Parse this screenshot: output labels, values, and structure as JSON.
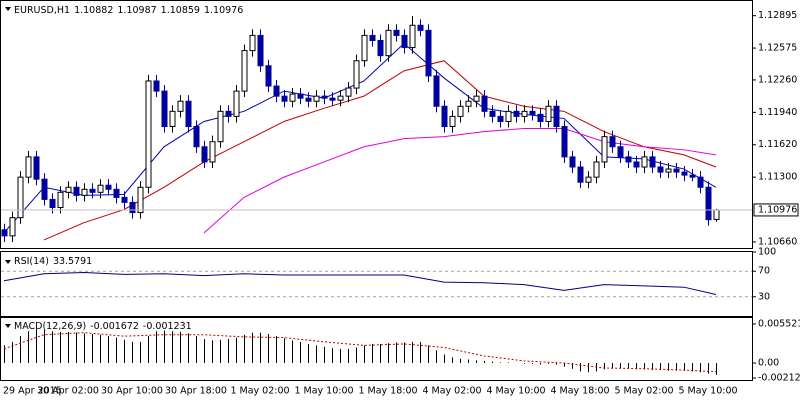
{
  "chart_data": [
    {
      "type": "candlestick",
      "title": "EURUSD,H1",
      "categories": [
        "29 Apr 2015",
        null,
        null,
        null,
        null,
        null,
        null,
        null,
        "30 Apr 02:00",
        null,
        null,
        null,
        null,
        null,
        null,
        null,
        "30 Apr 10:00",
        null,
        null,
        null,
        null,
        null,
        null,
        null,
        "30 Apr 18:00",
        null,
        null,
        null,
        null,
        null,
        null,
        null,
        "1 May 02:00",
        null,
        null,
        null,
        null,
        null,
        null,
        null,
        "1 May 10:00",
        null,
        null,
        null,
        null,
        null,
        null,
        null,
        "1 May 18:00",
        null,
        null,
        null,
        null,
        null,
        null,
        null,
        "4 May 02:00",
        null,
        null,
        null,
        null,
        null,
        null,
        null,
        "4 May 10:00",
        null,
        null,
        null,
        null,
        null,
        null,
        null,
        "4 May 18:00",
        null,
        null,
        null,
        null,
        null,
        null,
        null,
        "5 May 02:00",
        null,
        null,
        null,
        null,
        null,
        null,
        null,
        "5 May 10:00",
        null
      ],
      "open": [
        1.1078,
        1.1072,
        1.109,
        1.113,
        1.115,
        1.1128,
        1.1108,
        1.11,
        1.1115,
        1.112,
        1.1112,
        1.1118,
        1.1115,
        1.1122,
        1.1118,
        1.111,
        1.1105,
        1.1095,
        1.112,
        1.1225,
        1.1215,
        1.118,
        1.1195,
        1.1205,
        1.118,
        1.116,
        1.1145,
        1.1165,
        1.1195,
        1.119,
        1.1215,
        1.1255,
        1.127,
        1.124,
        1.122,
        1.121,
        1.1205,
        1.1212,
        1.1208,
        1.1205,
        1.121,
        1.1208,
        1.1206,
        1.121,
        1.1218,
        1.1245,
        1.127,
        1.1265,
        1.125,
        1.1275,
        1.127,
        1.1258,
        1.128,
        1.1275,
        1.123,
        1.12,
        1.118,
        1.119,
        1.12,
        1.1205,
        1.121,
        1.1195,
        1.119,
        1.1185,
        1.1195,
        1.119,
        1.1195,
        1.1192,
        1.1185,
        1.12,
        1.118,
        1.115,
        1.114,
        1.1125,
        1.113,
        1.1145,
        1.117,
        1.116,
        1.115,
        1.1145,
        1.114,
        1.115,
        1.114,
        1.1135,
        1.1138,
        1.1135,
        1.1132,
        1.113,
        1.112,
        1.10882
      ],
      "high": [
        1.1084,
        1.1096,
        1.1136,
        1.1156,
        1.1156,
        1.1134,
        1.1114,
        1.1121,
        1.1126,
        1.1126,
        1.1124,
        1.1124,
        1.1128,
        1.1128,
        1.1124,
        1.1116,
        1.1111,
        1.1126,
        1.1231,
        1.1231,
        1.1221,
        1.1201,
        1.1211,
        1.1211,
        1.1186,
        1.1166,
        1.1171,
        1.1201,
        1.1201,
        1.1221,
        1.1261,
        1.1276,
        1.1276,
        1.1246,
        1.1226,
        1.1216,
        1.1218,
        1.1218,
        1.1214,
        1.1216,
        1.1216,
        1.1214,
        1.1216,
        1.1224,
        1.1251,
        1.1276,
        1.1276,
        1.1271,
        1.1281,
        1.1281,
        1.1276,
        1.1289,
        1.1286,
        1.1281,
        1.1236,
        1.1206,
        1.1196,
        1.1206,
        1.1211,
        1.1216,
        1.1216,
        1.1201,
        1.1196,
        1.1201,
        1.1201,
        1.1201,
        1.1201,
        1.1198,
        1.1206,
        1.1206,
        1.1186,
        1.1156,
        1.1146,
        1.1136,
        1.1151,
        1.1176,
        1.1176,
        1.1166,
        1.1156,
        1.1151,
        1.1156,
        1.1156,
        1.1146,
        1.1144,
        1.1144,
        1.1141,
        1.1138,
        1.1136,
        1.1126,
        1.10987
      ],
      "low": [
        1.1066,
        1.1066,
        1.1084,
        1.1124,
        1.1122,
        1.1102,
        1.1094,
        1.1094,
        1.1109,
        1.1106,
        1.1106,
        1.1109,
        1.1109,
        1.1112,
        1.1104,
        1.1099,
        1.1089,
        1.1089,
        1.1114,
        1.1209,
        1.1174,
        1.1174,
        1.1189,
        1.1174,
        1.1154,
        1.1139,
        1.1139,
        1.1159,
        1.1184,
        1.1184,
        1.1209,
        1.1249,
        1.1234,
        1.1214,
        1.1204,
        1.1199,
        1.1199,
        1.1202,
        1.1199,
        1.1199,
        1.1202,
        1.12,
        1.12,
        1.1204,
        1.1212,
        1.1239,
        1.1259,
        1.1244,
        1.1244,
        1.1264,
        1.1252,
        1.1252,
        1.1269,
        1.1224,
        1.1194,
        1.1174,
        1.1174,
        1.1184,
        1.1194,
        1.1199,
        1.1189,
        1.1184,
        1.1179,
        1.1179,
        1.1184,
        1.1184,
        1.1186,
        1.1179,
        1.1179,
        1.1174,
        1.1144,
        1.1134,
        1.1119,
        1.1119,
        1.1124,
        1.1139,
        1.1154,
        1.1144,
        1.1139,
        1.1134,
        1.1134,
        1.1134,
        1.1129,
        1.1129,
        1.1129,
        1.1126,
        1.1126,
        1.1114,
        1.1082,
        1.10859
      ],
      "close": [
        1.1072,
        1.109,
        1.113,
        1.115,
        1.1128,
        1.1108,
        1.11,
        1.1115,
        1.112,
        1.1112,
        1.1118,
        1.1115,
        1.1122,
        1.1118,
        1.111,
        1.1105,
        1.1095,
        1.112,
        1.1225,
        1.1215,
        1.118,
        1.1195,
        1.1205,
        1.118,
        1.116,
        1.1145,
        1.1165,
        1.1195,
        1.119,
        1.1215,
        1.1255,
        1.127,
        1.124,
        1.122,
        1.121,
        1.1205,
        1.1212,
        1.1208,
        1.1205,
        1.121,
        1.1208,
        1.1206,
        1.121,
        1.1218,
        1.1245,
        1.127,
        1.1265,
        1.125,
        1.1275,
        1.127,
        1.1258,
        1.128,
        1.1275,
        1.123,
        1.12,
        1.118,
        1.119,
        1.12,
        1.1205,
        1.121,
        1.1195,
        1.119,
        1.1185,
        1.1195,
        1.119,
        1.1195,
        1.1192,
        1.1185,
        1.12,
        1.118,
        1.115,
        1.114,
        1.1125,
        1.113,
        1.1145,
        1.117,
        1.116,
        1.115,
        1.1145,
        1.114,
        1.115,
        1.114,
        1.1135,
        1.1138,
        1.1135,
        1.1132,
        1.113,
        1.112,
        1.1088,
        1.10976
      ],
      "colors": {
        "up": "#ffffff",
        "down": "#0000a0",
        "outline": "#000000"
      },
      "series": [
        {
          "color": "#0000c0",
          "x": [
            0,
            5,
            10,
            15,
            20,
            25,
            30,
            35,
            40,
            45,
            50,
            55,
            60,
            65,
            70,
            75,
            80,
            85,
            89
          ],
          "values": [
            1.1075,
            1.112,
            1.1112,
            1.1113,
            1.116,
            1.1185,
            1.1195,
            1.1215,
            1.1208,
            1.1225,
            1.1262,
            1.1228,
            1.1198,
            1.1192,
            1.1188,
            1.115,
            1.1148,
            1.1138,
            1.112
          ]
        },
        {
          "color": "#c00000",
          "x": [
            0,
            5,
            10,
            15,
            20,
            25,
            30,
            35,
            40,
            45,
            50,
            55,
            60,
            65,
            70,
            75,
            80,
            85,
            89
          ],
          "values": [
            null,
            1.1068,
            1.1085,
            1.1098,
            1.112,
            1.1145,
            1.1165,
            1.1185,
            1.1198,
            1.121,
            1.1235,
            1.1245,
            1.121,
            1.12,
            1.1195,
            1.1175,
            1.116,
            1.1152,
            1.114
          ]
        },
        {
          "color": "#e000e0",
          "x": [
            0,
            5,
            10,
            15,
            20,
            25,
            30,
            35,
            40,
            45,
            50,
            55,
            60,
            65,
            70,
            75,
            80,
            85,
            89
          ],
          "values": [
            null,
            null,
            null,
            null,
            null,
            1.1075,
            1.111,
            1.113,
            1.1145,
            1.116,
            1.1168,
            1.117,
            1.1175,
            1.1178,
            1.1178,
            1.1165,
            1.116,
            1.1157,
            1.1152
          ]
        }
      ],
      "ylim": [
        1.1061,
        1.1303
      ],
      "yticks": [
        1.12895,
        1.12575,
        {
          "value": 1.1226,
          "label": "1.12260"
        },
        {
          "value": 1.1194,
          "label": "1.11940"
        },
        {
          "value": 1.1162,
          "label": "1.11620"
        },
        {
          "value": 1.113,
          "label": "1.11300"
        },
        {
          "value": 1.1066,
          "label": "1.10660"
        }
      ]
    },
    {
      "type": "line",
      "title": "RSI(14)",
      "x": [
        0,
        5,
        10,
        15,
        20,
        25,
        30,
        35,
        40,
        45,
        50,
        55,
        60,
        65,
        70,
        75,
        80,
        85,
        89
      ],
      "values": [
        55,
        66,
        68,
        65,
        66,
        63,
        66,
        64,
        64,
        64,
        64,
        53,
        52,
        49,
        40,
        49,
        47,
        45,
        33.5791
      ],
      "color": "#000080",
      "levels": [
        70,
        30
      ],
      "ylim": [
        0,
        100
      ],
      "yticks": [
        100,
        70,
        30
      ]
    },
    {
      "type": "macd",
      "title": "MACD(12,26,9)",
      "values": [
        0.0025,
        0.003,
        0.0038,
        0.0045,
        0.0048,
        0.0047,
        0.0045,
        0.0044,
        0.0044,
        0.0043,
        0.0042,
        0.0041,
        0.004,
        0.0038,
        0.0036,
        0.0033,
        0.003,
        0.003,
        0.0038,
        0.0045,
        0.0046,
        0.0045,
        0.0044,
        0.0042,
        0.0038,
        0.0034,
        0.0032,
        0.0033,
        0.0034,
        0.0036,
        0.004,
        0.0043,
        0.0043,
        0.0041,
        0.0038,
        0.0035,
        0.0032,
        0.003,
        0.0027,
        0.0025,
        0.0023,
        0.0021,
        0.002,
        0.002,
        0.0022,
        0.0025,
        0.0027,
        0.0027,
        0.0028,
        0.0029,
        0.0029,
        0.003,
        0.003,
        0.0025,
        0.0018,
        0.0012,
        0.0008,
        0.0006,
        0.0005,
        0.0004,
        0.0003,
        0.0002,
        0.0001,
        0.0001,
        0.0,
        -0.0001,
        -0.0001,
        -0.0002,
        -0.0001,
        -0.0002,
        -0.0005,
        -0.0008,
        -0.0012,
        -0.0013,
        -0.0012,
        -0.0009,
        -0.0008,
        -0.0008,
        -0.0008,
        -0.0009,
        -0.0009,
        -0.001,
        -0.001,
        -0.0011,
        -0.0011,
        -0.0011,
        -0.0012,
        -0.0013,
        -0.0015,
        -0.001672
      ],
      "color": "#000000",
      "signal": {
        "color": "#c00000",
        "x": [
          0,
          5,
          10,
          15,
          20,
          25,
          30,
          35,
          40,
          45,
          50,
          55,
          60,
          65,
          70,
          75,
          80,
          85,
          89
        ],
        "values": [
          0.002,
          0.004,
          0.0043,
          0.0038,
          0.004,
          0.004,
          0.0037,
          0.0036,
          0.003,
          0.0025,
          0.0027,
          0.0022,
          0.001,
          0.0003,
          0.0,
          -0.0007,
          -0.0008,
          -0.001,
          -0.001231
        ]
      },
      "ylim": [
        -0.0024,
        0.00637
      ],
      "yticks": [
        0.005521,
        {
          "value": 0,
          "label": "0.00"
        },
        -0.00212
      ]
    }
  ]
}
